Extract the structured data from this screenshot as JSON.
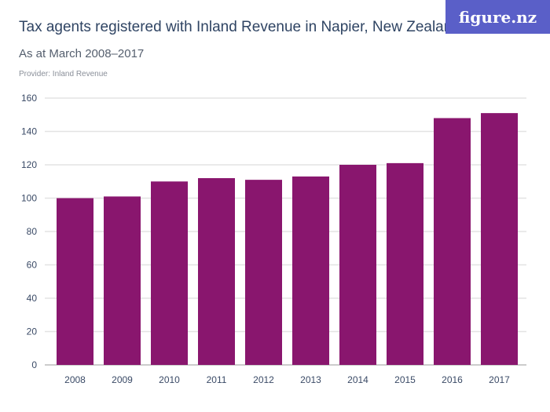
{
  "header": {
    "title": "Tax agents registered with Inland Revenue in Napier, New Zealand",
    "subtitle": "As at March 2008–2017",
    "provider": "Provider: Inland Revenue",
    "logo": "figure.nz"
  },
  "colors": {
    "bar": "#89166e",
    "grid": "#e3e3e3",
    "logo_bg": "#5a5fc8"
  },
  "chart_data": {
    "type": "bar",
    "title": "Tax agents registered with Inland Revenue in Napier, New Zealand",
    "subtitle": "As at March 2008–2017",
    "categories": [
      "2008",
      "2009",
      "2010",
      "2011",
      "2012",
      "2013",
      "2014",
      "2015",
      "2016",
      "2017"
    ],
    "values": [
      100,
      101,
      110,
      112,
      111,
      113,
      120,
      121,
      148,
      151
    ],
    "ylim": [
      0,
      160
    ],
    "yticks": [
      0,
      20,
      40,
      60,
      80,
      100,
      120,
      140,
      160
    ],
    "grid": true,
    "xlabel": "",
    "ylabel": ""
  }
}
